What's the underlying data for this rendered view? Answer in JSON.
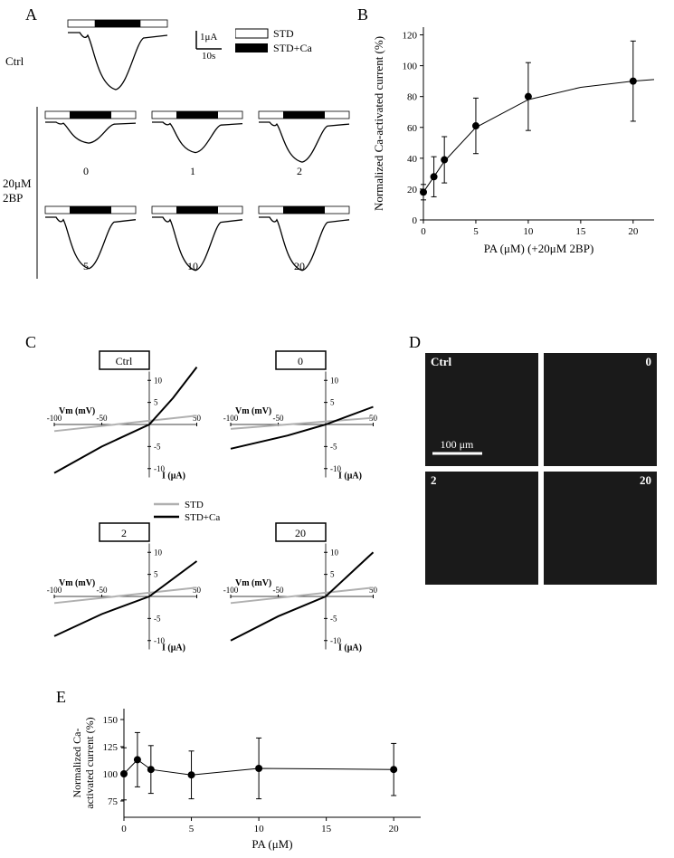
{
  "fonts": {
    "family": "Times New Roman",
    "label_size": 18,
    "axis_size": 12,
    "tick_size": 11
  },
  "colors": {
    "black": "#000000",
    "gray": "#b0b0b0",
    "white": "#ffffff",
    "bg": "#ffffff",
    "micro_bg": "#1a1a1a"
  },
  "panelA": {
    "label": "A",
    "scale": {
      "y_label": "1μA",
      "x_label": "10s"
    },
    "legend": {
      "std": "STD",
      "stdca": "STD+Ca"
    },
    "ctrl_label": "Ctrl",
    "cond_label": "20μM\n2BP",
    "traces": [
      {
        "tag": "0",
        "depth": 8
      },
      {
        "tag": "1",
        "depth": 18
      },
      {
        "tag": "2",
        "depth": 28
      },
      {
        "tag": "5",
        "depth": 40
      },
      {
        "tag": "10",
        "depth": 42
      },
      {
        "tag": "20",
        "depth": 42
      }
    ],
    "ctrl_depth": 42
  },
  "panelB": {
    "label": "B",
    "type": "scatter",
    "xlabel": "PA (μM) (+20μM 2BP)",
    "ylabel": "Normalized Ca-activated current (%)",
    "xlim": [
      0,
      22
    ],
    "ylim": [
      0,
      125
    ],
    "xticks": [
      0,
      5,
      10,
      15,
      20
    ],
    "yticks": [
      0,
      20,
      40,
      60,
      80,
      100,
      120
    ],
    "points": [
      {
        "x": 0,
        "y": 18,
        "err": 5
      },
      {
        "x": 1,
        "y": 28,
        "err": 13
      },
      {
        "x": 2,
        "y": 39,
        "err": 15
      },
      {
        "x": 5,
        "y": 61,
        "err": 18
      },
      {
        "x": 10,
        "y": 80,
        "err": 22
      },
      {
        "x": 20,
        "y": 90,
        "err": 26
      }
    ],
    "curve": [
      [
        0,
        18
      ],
      [
        1,
        28
      ],
      [
        2,
        38
      ],
      [
        5,
        60
      ],
      [
        10,
        78
      ],
      [
        15,
        86
      ],
      [
        20,
        90
      ],
      [
        22,
        91
      ]
    ],
    "marker_color": "#000000",
    "line_color": "#000000",
    "bg": "#ffffff"
  },
  "panelC": {
    "label": "C",
    "subplots": [
      "Ctrl",
      "0",
      "2",
      "20"
    ],
    "xlabel": "Vm (mV)",
    "ylabel": "I (μA)",
    "xlim": [
      -100,
      50
    ],
    "ylim": [
      -12,
      12
    ],
    "xticks": [
      -100,
      -50,
      50
    ],
    "yticks": [
      -10,
      -5,
      5,
      10
    ],
    "legend": {
      "std": "STD",
      "stdca": "STD+Ca"
    },
    "lines": {
      "Ctrl": {
        "std": [
          [
            -100,
            -1.5
          ],
          [
            50,
            2
          ]
        ],
        "ca": [
          [
            -100,
            -11
          ],
          [
            -50,
            -5
          ],
          [
            0,
            0
          ],
          [
            25,
            6
          ],
          [
            50,
            13
          ]
        ]
      },
      "0": {
        "std": [
          [
            -100,
            -1
          ],
          [
            50,
            1.5
          ]
        ],
        "ca": [
          [
            -100,
            -5.5
          ],
          [
            -40,
            -2.5
          ],
          [
            0,
            0
          ],
          [
            50,
            4
          ]
        ]
      },
      "2": {
        "std": [
          [
            -100,
            -1.5
          ],
          [
            50,
            2
          ]
        ],
        "ca": [
          [
            -100,
            -9
          ],
          [
            -50,
            -4
          ],
          [
            0,
            0
          ],
          [
            50,
            8
          ]
        ]
      },
      "20": {
        "std": [
          [
            -100,
            -1.5
          ],
          [
            50,
            2
          ]
        ],
        "ca": [
          [
            -100,
            -10
          ],
          [
            -50,
            -4.5
          ],
          [
            0,
            0
          ],
          [
            50,
            10
          ]
        ]
      }
    },
    "std_color": "#b0b0b0",
    "ca_color": "#000000"
  },
  "panelD": {
    "label": "D",
    "images": [
      "Ctrl",
      "0",
      "2",
      "20"
    ],
    "scale_label": "100 μm",
    "bg": "#1a1a1a",
    "signal": "#d8d8d8"
  },
  "panelE": {
    "label": "E",
    "xlabel": "PA (μM)",
    "ylabel": "Normalized Ca-\nactivated current (%)",
    "xlim": [
      0,
      22
    ],
    "ylim": [
      60,
      160
    ],
    "xticks": [
      0,
      5,
      10,
      15,
      20
    ],
    "yticks": [
      75,
      100,
      125,
      150
    ],
    "points": [
      {
        "x": 0,
        "y": 100,
        "err": 24
      },
      {
        "x": 1,
        "y": 113,
        "err": 25
      },
      {
        "x": 2,
        "y": 104,
        "err": 22
      },
      {
        "x": 5,
        "y": 99,
        "err": 22
      },
      {
        "x": 10,
        "y": 105,
        "err": 28
      },
      {
        "x": 20,
        "y": 104,
        "err": 24
      }
    ],
    "marker_color": "#000000",
    "line_color": "#000000"
  }
}
